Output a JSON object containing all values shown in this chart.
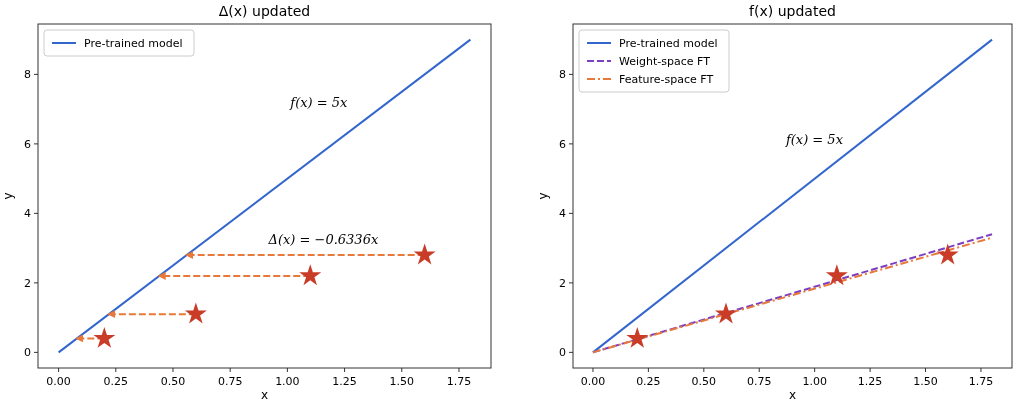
{
  "chart_data": [
    {
      "type": "line",
      "title": "Δ(x) updated",
      "xlabel": "x",
      "ylabel": "y",
      "xlim": [
        -0.09,
        1.89
      ],
      "ylim": [
        -0.45,
        9.45
      ],
      "xticks": [
        {
          "value": 0,
          "label": "0.00"
        },
        {
          "value": 0.25,
          "label": "0.25"
        },
        {
          "value": 0.5,
          "label": "0.50"
        },
        {
          "value": 0.75,
          "label": "0.75"
        },
        {
          "value": 1,
          "label": "1.00"
        },
        {
          "value": 1.25,
          "label": "1.25"
        },
        {
          "value": 1.5,
          "label": "1.50"
        },
        {
          "value": 1.75,
          "label": "1.75"
        }
      ],
      "yticks": [
        0,
        2,
        4,
        6,
        8
      ],
      "legend": "top left",
      "grid": false,
      "series": [
        {
          "name": "Pre-trained model",
          "type": "line",
          "color": "#3366cc",
          "line_style": "solid",
          "x": [
            0,
            1.8
          ],
          "values": [
            0,
            9
          ]
        },
        {
          "type": "line",
          "color": "#e8793a",
          "line_style": "dashed",
          "x": [
            0.2,
            0.08
          ],
          "values": [
            0.4,
            0.4
          ]
        },
        {
          "type": "line",
          "color": "#e8793a",
          "line_style": "dashed",
          "x": [
            0.6,
            0.22
          ],
          "values": [
            1.1,
            1.1
          ]
        },
        {
          "type": "line",
          "color": "#e8793a",
          "line_style": "dashed",
          "x": [
            1.1,
            0.44
          ],
          "values": [
            2.2,
            2.2
          ]
        },
        {
          "type": "line",
          "color": "#e8793a",
          "line_style": "dashed",
          "x": [
            1.6,
            0.56
          ],
          "values": [
            2.8,
            2.8
          ]
        },
        {
          "type": "scatter",
          "color": "#c83c28",
          "marker": "star",
          "x": [
            0.2,
            0.6,
            1.1,
            1.6
          ],
          "values": [
            0.4,
            1.1,
            2.2,
            2.8
          ]
        }
      ],
      "annotations": [
        "f(x) = 5x",
        "Δ(x) = −0.6336x"
      ]
    },
    {
      "type": "line",
      "title": "f(x) updated",
      "xlabel": "x",
      "ylabel": "y",
      "xlim": [
        -0.09,
        1.89
      ],
      "ylim": [
        -0.45,
        9.45
      ],
      "xticks": [
        {
          "value": 0,
          "label": "0.00"
        },
        {
          "value": 0.25,
          "label": "0.25"
        },
        {
          "value": 0.5,
          "label": "0.50"
        },
        {
          "value": 0.75,
          "label": "0.75"
        },
        {
          "value": 1,
          "label": "1.00"
        },
        {
          "value": 1.25,
          "label": "1.25"
        },
        {
          "value": 1.5,
          "label": "1.50"
        },
        {
          "value": 1.75,
          "label": "1.75"
        }
      ],
      "yticks": [
        0,
        2,
        4,
        6,
        8
      ],
      "legend": "top left",
      "grid": false,
      "series": [
        {
          "name": "Pre-trained model",
          "type": "line",
          "color": "#3366cc",
          "line_style": "solid",
          "x": [
            0,
            1.8
          ],
          "values": [
            0,
            9
          ]
        },
        {
          "name": "Weight-space FT",
          "type": "line",
          "color": "#7b3fbf",
          "line_style": "dashed",
          "x": [
            0,
            1.8
          ],
          "values": [
            0,
            3.4
          ]
        },
        {
          "name": "Feature-space FT",
          "type": "line",
          "color": "#e8793a",
          "line_style": "dashdot",
          "x": [
            0,
            1.8
          ],
          "values": [
            0,
            3.3
          ]
        },
        {
          "type": "scatter",
          "color": "#c83c28",
          "marker": "star",
          "x": [
            0.2,
            0.6,
            1.1,
            1.6
          ],
          "values": [
            0.4,
            1.1,
            2.2,
            2.8
          ]
        }
      ],
      "annotations": [
        "f(x) = 5x"
      ]
    }
  ]
}
